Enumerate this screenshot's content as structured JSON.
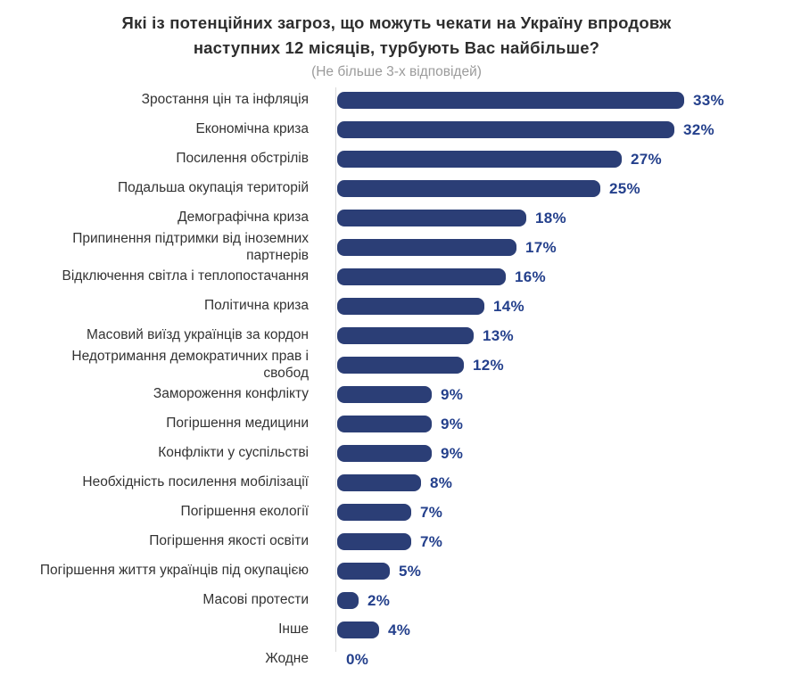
{
  "chart_data": {
    "type": "bar",
    "orientation": "horizontal",
    "title": "Які із потенційних загроз, що можуть чекати на Україну впродовж\nнаступних 12 місяців, турбують Вас найбільше?",
    "subtitle": "(Не більше 3-х відповідей)",
    "categories": [
      "Зростання цін та інфляція",
      "Економічна криза",
      "Посилення обстрілів",
      "Подальша окупація територій",
      "Демографічна криза",
      "Припинення підтримки від іноземних\nпартнерів",
      "Відключення світла і теплопостачання",
      "Політична криза",
      "Масовий виїзд українців за кордон",
      "Недотримання демократичних прав і\nсвобод",
      "Замороження конфлікту",
      "Погіршення медицини",
      "Конфлікти у суспільстві",
      "Необхідність посилення мобілізації",
      "Погіршення екології",
      "Погіршення якості освіти",
      "Погіршення життя українців під окупацією",
      "Масові протести",
      "Інше",
      "Жодне"
    ],
    "values": [
      33,
      32,
      27,
      25,
      18,
      17,
      16,
      14,
      13,
      12,
      9,
      9,
      9,
      8,
      7,
      7,
      5,
      2,
      4,
      0
    ],
    "unit": "%",
    "xlim": [
      0,
      35
    ],
    "grid": false,
    "legend": false,
    "bar_color": "#2b3e76",
    "value_color": "#24408c",
    "axis_line_color": "#d9d9d9",
    "title_color": "#2e2e2e",
    "subtitle_color": "#9b9b9b",
    "label_color": "#333333"
  }
}
